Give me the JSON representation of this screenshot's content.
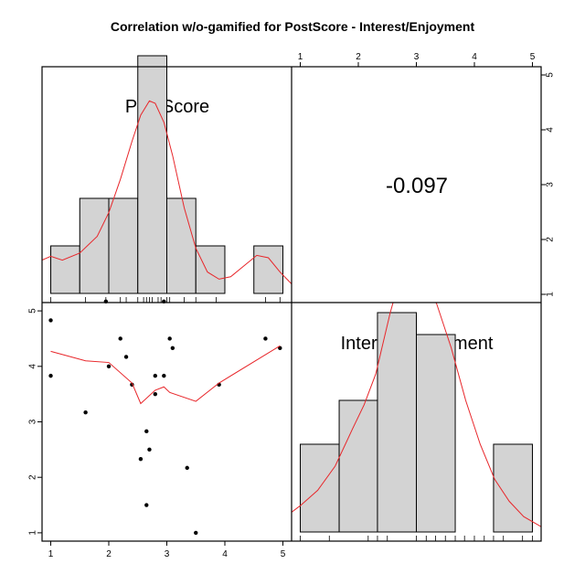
{
  "chart_data": {
    "type": "scatter-matrix",
    "title": "Correlation w/o-gamified for PostScore - Interest/Enjoyment",
    "variables": [
      "PostScore",
      "Interest/Enjoyment"
    ],
    "correlation": "-0.097",
    "axis_ticks": [
      "1",
      "2",
      "3",
      "4",
      "5"
    ],
    "axis_range": [
      0.85,
      5.15
    ],
    "postscore_histogram": {
      "breaks": [
        1.0,
        1.5,
        2.0,
        2.5,
        3.0,
        3.5,
        4.0,
        4.5,
        5.0
      ],
      "counts": [
        1,
        2,
        2,
        5,
        2,
        1,
        0,
        1
      ],
      "density_curve": [
        [
          0.85,
          0.7
        ],
        [
          1.0,
          0.78
        ],
        [
          1.2,
          0.7
        ],
        [
          1.5,
          0.85
        ],
        [
          1.8,
          1.2
        ],
        [
          2.0,
          1.7
        ],
        [
          2.2,
          2.4
        ],
        [
          2.4,
          3.2
        ],
        [
          2.55,
          3.75
        ],
        [
          2.7,
          4.05
        ],
        [
          2.8,
          4.0
        ],
        [
          2.95,
          3.6
        ],
        [
          3.1,
          2.9
        ],
        [
          3.3,
          1.8
        ],
        [
          3.5,
          0.95
        ],
        [
          3.7,
          0.45
        ],
        [
          3.9,
          0.3
        ],
        [
          4.1,
          0.35
        ],
        [
          4.3,
          0.55
        ],
        [
          4.55,
          0.8
        ],
        [
          4.75,
          0.75
        ],
        [
          4.95,
          0.45
        ],
        [
          5.15,
          0.2
        ]
      ]
    },
    "interest_histogram": {
      "breaks": [
        1.0,
        1.67,
        2.33,
        3.0,
        3.67,
        4.33,
        5.0
      ],
      "counts": [
        2,
        3,
        5,
        4.5,
        0,
        2
      ],
      "density_curve": [
        [
          0.85,
          0.45
        ],
        [
          1.0,
          0.6
        ],
        [
          1.3,
          0.95
        ],
        [
          1.6,
          1.5
        ],
        [
          1.9,
          2.35
        ],
        [
          2.1,
          2.9
        ],
        [
          2.3,
          3.6
        ],
        [
          2.55,
          5.0
        ],
        [
          2.7,
          5.7
        ],
        [
          2.9,
          5.9
        ],
        [
          3.1,
          5.8
        ],
        [
          3.35,
          5.2
        ],
        [
          3.6,
          4.2
        ],
        [
          3.85,
          3.0
        ],
        [
          4.1,
          2.0
        ],
        [
          4.35,
          1.2
        ],
        [
          4.6,
          0.7
        ],
        [
          4.85,
          0.35
        ],
        [
          5.15,
          0.12
        ]
      ]
    },
    "rug_postscore": [
      1.0,
      1.6,
      1.95,
      2.2,
      2.3,
      2.5,
      2.6,
      2.65,
      2.7,
      2.75,
      2.85,
      2.9,
      3.0,
      3.05,
      3.3,
      3.5,
      3.85,
      4.7,
      4.95
    ],
    "rug_interest": [
      1.0,
      1.5,
      2.17,
      2.33,
      2.5,
      3.0,
      3.17,
      3.33,
      3.5,
      3.67,
      3.83,
      4.0,
      4.17,
      4.33,
      4.5,
      4.83,
      5.0
    ],
    "points": [
      [
        1.0,
        4.83
      ],
      [
        1.0,
        3.83
      ],
      [
        1.95,
        5.17
      ],
      [
        2.95,
        5.17
      ],
      [
        1.6,
        3.17
      ],
      [
        2.0,
        4.0
      ],
      [
        2.2,
        4.5
      ],
      [
        2.3,
        4.17
      ],
      [
        2.4,
        3.67
      ],
      [
        2.55,
        2.33
      ],
      [
        2.65,
        2.83
      ],
      [
        2.65,
        1.5
      ],
      [
        2.7,
        2.5
      ],
      [
        2.8,
        3.83
      ],
      [
        2.8,
        3.5
      ],
      [
        2.95,
        3.83
      ],
      [
        3.05,
        4.5
      ],
      [
        3.1,
        4.33
      ],
      [
        3.35,
        2.17
      ],
      [
        3.5,
        1.0
      ],
      [
        3.9,
        3.67
      ],
      [
        4.7,
        4.5
      ],
      [
        4.95,
        4.33
      ]
    ],
    "loess": [
      [
        1.0,
        4.27
      ],
      [
        1.6,
        4.1
      ],
      [
        2.0,
        4.07
      ],
      [
        2.4,
        3.7
      ],
      [
        2.55,
        3.33
      ],
      [
        2.8,
        3.57
      ],
      [
        2.95,
        3.63
      ],
      [
        3.05,
        3.53
      ],
      [
        3.5,
        3.37
      ],
      [
        3.9,
        3.7
      ],
      [
        4.95,
        4.37
      ]
    ],
    "colors": {
      "hist_fill": "#d3d3d3",
      "curve": "#e8262a",
      "points": "#000000"
    }
  }
}
